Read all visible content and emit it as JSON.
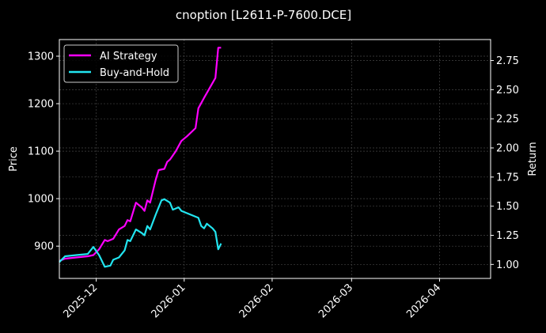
{
  "chart_data": {
    "type": "line",
    "title": "cnoption [L2611-P-7600.DCE]",
    "xlabel": "",
    "ylabel": "Price",
    "y2label": "Return",
    "ylim": [
      832,
      1335
    ],
    "y2lim": [
      0.88,
      2.93
    ],
    "xlim": [
      "2025-11-18",
      "2026-04-19"
    ],
    "x_ticks": [
      "2025-12",
      "2026-01",
      "2026-02",
      "2026-03",
      "2026-04"
    ],
    "y_ticks": [
      900,
      1000,
      1100,
      1200,
      1300
    ],
    "y2_ticks": [
      "1.00",
      "1.25",
      "1.50",
      "1.75",
      "2.00",
      "2.25",
      "2.50",
      "2.75"
    ],
    "grid": true,
    "legend_position": "upper left",
    "legend": [
      "AI Strategy",
      "Buy-and-Hold"
    ],
    "series": [
      {
        "name": "AI Strategy",
        "axis": "right",
        "color": "#ff00ff",
        "x": [
          "2025-11-18",
          "2025-11-20",
          "2025-11-24",
          "2025-11-28",
          "2025-11-30",
          "2025-12-02",
          "2025-12-04",
          "2025-12-05",
          "2025-12-07",
          "2025-12-09",
          "2025-12-11",
          "2025-12-12",
          "2025-12-13",
          "2025-12-15",
          "2025-12-17",
          "2025-12-18",
          "2025-12-19",
          "2025-12-20",
          "2025-12-22",
          "2025-12-23",
          "2025-12-25",
          "2025-12-26",
          "2025-12-27",
          "2025-12-29",
          "2025-12-31",
          "2026-01-02",
          "2026-01-05",
          "2026-01-06",
          "2026-01-08",
          "2026-01-12",
          "2026-01-13",
          "2026-01-14"
        ],
        "values": [
          1.03,
          1.05,
          1.06,
          1.07,
          1.08,
          1.13,
          1.21,
          1.2,
          1.22,
          1.3,
          1.33,
          1.38,
          1.37,
          1.53,
          1.49,
          1.46,
          1.55,
          1.53,
          1.73,
          1.81,
          1.82,
          1.88,
          1.9,
          1.97,
          2.06,
          2.1,
          2.17,
          2.34,
          2.43,
          2.6,
          2.86,
          2.86
        ]
      },
      {
        "name": "Buy-and-Hold",
        "axis": "right",
        "color": "#22e5f0",
        "x": [
          "2025-11-18",
          "2025-11-20",
          "2025-11-24",
          "2025-11-28",
          "2025-11-30",
          "2025-12-02",
          "2025-12-04",
          "2025-12-06",
          "2025-12-07",
          "2025-12-09",
          "2025-12-11",
          "2025-12-12",
          "2025-12-13",
          "2025-12-15",
          "2025-12-17",
          "2025-12-18",
          "2025-12-19",
          "2025-12-20",
          "2025-12-22",
          "2025-12-24",
          "2025-12-25",
          "2025-12-27",
          "2025-12-28",
          "2025-12-30",
          "2025-12-31",
          "2026-01-02",
          "2026-01-06",
          "2026-01-07",
          "2026-01-08",
          "2026-01-09",
          "2026-01-11",
          "2026-01-12",
          "2026-01-13",
          "2026-01-14"
        ],
        "values": [
          1.02,
          1.07,
          1.08,
          1.09,
          1.15,
          1.08,
          0.98,
          0.99,
          1.04,
          1.06,
          1.12,
          1.21,
          1.2,
          1.3,
          1.27,
          1.25,
          1.33,
          1.3,
          1.43,
          1.55,
          1.56,
          1.53,
          1.47,
          1.49,
          1.46,
          1.44,
          1.4,
          1.33,
          1.31,
          1.35,
          1.31,
          1.28,
          1.13,
          1.18
        ]
      }
    ]
  }
}
